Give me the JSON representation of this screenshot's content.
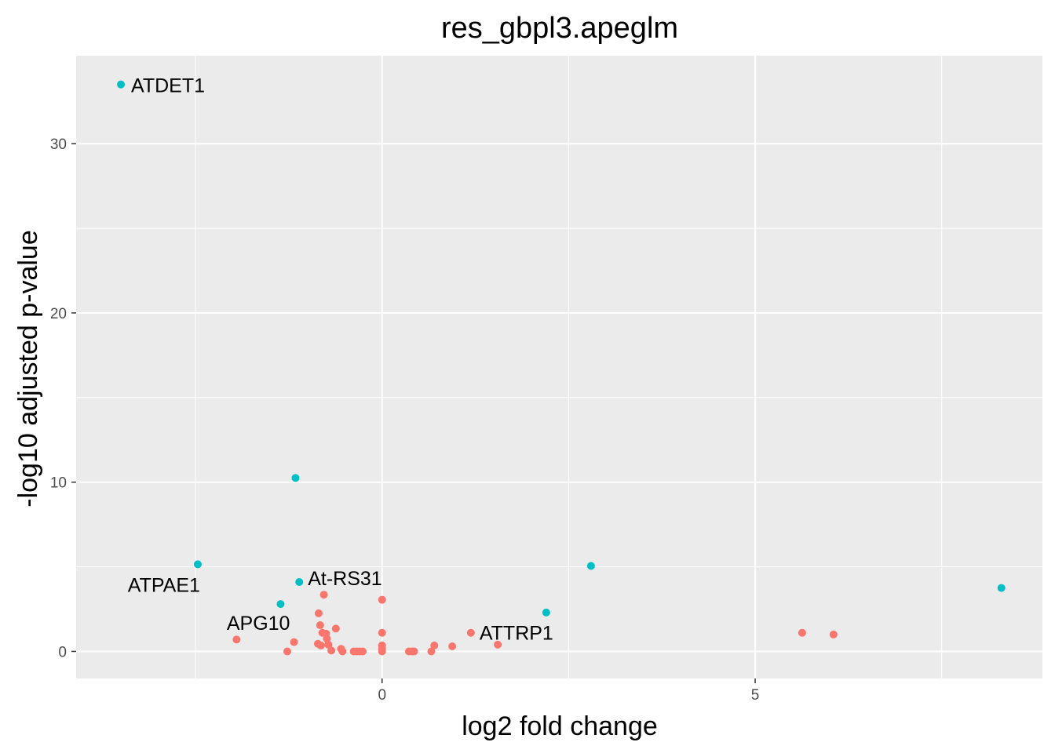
{
  "chart_data": {
    "type": "scatter",
    "title": "res_gbpl3.apeglm",
    "xlabel": "log2 fold change",
    "ylabel": "-log10 adjusted p-value",
    "xlim": [
      -4.1,
      8.85
    ],
    "ylim": [
      -1.6,
      35.2
    ],
    "x_ticks": [
      0,
      5
    ],
    "x_minor_ticks": [
      -2.5,
      2.5,
      7.5
    ],
    "y_ticks": [
      0,
      10,
      20,
      30
    ],
    "y_minor_ticks": [
      5,
      15,
      25
    ],
    "grid": true,
    "colors": {
      "panel": "#ebebeb",
      "grid": "#ffffff",
      "up_significant": "#00bfc4",
      "other": "#f8766d"
    },
    "series": [
      {
        "color": "#00bfc4",
        "points": [
          {
            "x": -3.5,
            "y": 33.5,
            "label": "ATDET1"
          },
          {
            "x": -1.16,
            "y": 10.25
          },
          {
            "x": -2.47,
            "y": 5.15,
            "label": "ATPAE1"
          },
          {
            "x": -1.11,
            "y": 4.1,
            "label": "At-RS31"
          },
          {
            "x": -1.36,
            "y": 2.8,
            "label": "APG10"
          },
          {
            "x": 2.2,
            "y": 2.3
          },
          {
            "x": 2.8,
            "y": 5.05
          },
          {
            "x": 8.3,
            "y": 3.75
          }
        ]
      },
      {
        "color": "#f8766d",
        "points": [
          {
            "x": -1.95,
            "y": 0.7
          },
          {
            "x": -1.27,
            "y": 0.0
          },
          {
            "x": -1.18,
            "y": 0.55
          },
          {
            "x": -0.85,
            "y": 2.25
          },
          {
            "x": -0.83,
            "y": 1.55
          },
          {
            "x": -0.8,
            "y": 1.1
          },
          {
            "x": -0.78,
            "y": 3.35
          },
          {
            "x": -0.75,
            "y": 1.05
          },
          {
            "x": -0.74,
            "y": 0.75
          },
          {
            "x": -0.72,
            "y": 0.4
          },
          {
            "x": -0.82,
            "y": 0.35
          },
          {
            "x": -0.86,
            "y": 0.45
          },
          {
            "x": -0.62,
            "y": 1.35
          },
          {
            "x": -0.68,
            "y": 0.05
          },
          {
            "x": -0.55,
            "y": 0.15
          },
          {
            "x": -0.53,
            "y": 0.0
          },
          {
            "x": -0.38,
            "y": 0.0
          },
          {
            "x": -0.34,
            "y": 0.0
          },
          {
            "x": -0.3,
            "y": 0.0
          },
          {
            "x": -0.26,
            "y": 0.0
          },
          {
            "x": 0.0,
            "y": 3.05
          },
          {
            "x": 0.0,
            "y": 1.1
          },
          {
            "x": 0.0,
            "y": 0.35
          },
          {
            "x": 0.0,
            "y": 0.15
          },
          {
            "x": 0.0,
            "y": 0.0
          },
          {
            "x": 0.36,
            "y": 0.0
          },
          {
            "x": 0.4,
            "y": 0.0
          },
          {
            "x": 0.43,
            "y": 0.0
          },
          {
            "x": 0.66,
            "y": 0.0
          },
          {
            "x": 0.7,
            "y": 0.35
          },
          {
            "x": 0.94,
            "y": 0.3
          },
          {
            "x": 1.19,
            "y": 1.1,
            "label": "ATTRP1"
          },
          {
            "x": 1.55,
            "y": 0.4
          },
          {
            "x": 5.63,
            "y": 1.1
          },
          {
            "x": 6.05,
            "y": 1.0
          }
        ]
      }
    ]
  }
}
